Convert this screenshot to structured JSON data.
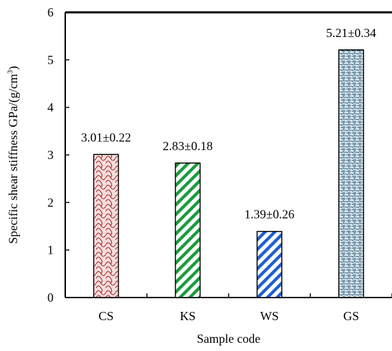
{
  "chart_data": {
    "type": "bar",
    "title": "",
    "xlabel": "Sample code",
    "ylabel_text": "Specific shear stiffness GPa/(g/cm",
    "ylabel_sup": "3",
    "ylabel_close": ")",
    "ylim": [
      0,
      6
    ],
    "yticks": [
      0,
      1,
      2,
      3,
      4,
      5,
      6
    ],
    "grid": false,
    "categories": [
      "CS",
      "KS",
      "WS",
      "GS"
    ],
    "values": [
      3.01,
      2.83,
      1.39,
      5.21
    ],
    "errors": [
      0.22,
      0.18,
      0.26,
      0.34
    ],
    "labels": [
      "3.01±0.22",
      "2.83±0.18",
      "1.39±0.26",
      "5.21±0.34"
    ],
    "bar_styles": [
      {
        "pattern": "scallop",
        "fill": "#f6dcdc",
        "stroke": "#9b1b1b"
      },
      {
        "pattern": "diagonal",
        "fill": "#ffffff",
        "stroke": "#1a9c3c"
      },
      {
        "pattern": "diagonal",
        "fill": "#ffffff",
        "stroke": "#1f5fd1"
      },
      {
        "pattern": "weave",
        "fill": "#e6f1f6",
        "stroke": "#1f5470"
      }
    ]
  }
}
